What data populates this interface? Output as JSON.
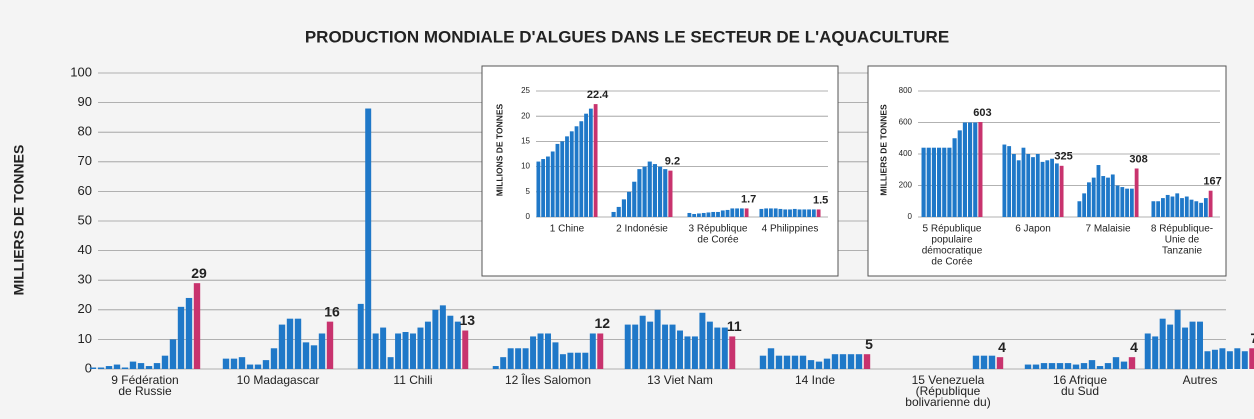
{
  "chart_data": [
    {
      "type": "grouped_bar",
      "title": "PRODUCTION MONDIALE D'ALGUES DANS LE SECTEUR DE L'AQUACULTURE",
      "y_label": "MILLIERS DE TONNES",
      "ylim": [
        0,
        100
      ],
      "yticks": [
        0,
        10,
        20,
        30,
        40,
        50,
        60,
        70,
        80,
        90,
        100
      ],
      "grid": true,
      "color": "#1f78c8",
      "highlight_color": "#c8336e",
      "groups": [
        {
          "name": [
            "9 Fédération",
            "de Russie"
          ],
          "values": [
            0.5,
            0.5,
            1,
            1.5,
            0.5,
            2.5,
            2,
            1,
            2,
            4.5,
            10,
            21,
            24,
            29
          ]
        },
        {
          "name": [
            "10 Madagascar"
          ],
          "values": [
            3.5,
            3.5,
            4,
            1.5,
            1.5,
            3,
            7,
            15,
            17,
            17,
            9,
            8,
            12,
            16
          ]
        },
        {
          "name": [
            "11 Chili"
          ],
          "values": [
            22,
            88,
            12,
            14,
            4,
            12,
            12.5,
            12,
            14,
            16,
            20,
            21.5,
            18,
            16,
            13
          ]
        },
        {
          "name": [
            "12 Îles Salomon"
          ],
          "values": [
            1,
            4,
            7,
            7,
            7,
            11,
            12,
            12,
            9,
            5,
            5.5,
            5.5,
            5.5,
            12,
            12
          ]
        },
        {
          "name": [
            "13 Viet Nam"
          ],
          "values": [
            15,
            15,
            18,
            16,
            20,
            15,
            15,
            13,
            11,
            11,
            19,
            16,
            14,
            14,
            11
          ]
        },
        {
          "name": [
            "14 Inde"
          ],
          "values": [
            4.5,
            7,
            4.5,
            4.5,
            4.5,
            4.5,
            3,
            2.5,
            3.5,
            5,
            5,
            5,
            5,
            5
          ]
        },
        {
          "name": [
            "15 Venezuela",
            "(République",
            "bolivarienne du)"
          ],
          "values": [
            0,
            0,
            0,
            0,
            0,
            0,
            0,
            0,
            0,
            0,
            4.5,
            4.5,
            4.5,
            4
          ]
        },
        {
          "name": [
            "16 Afrique",
            "du Sud"
          ],
          "values": [
            1.5,
            1.5,
            2,
            2,
            2,
            2,
            1.5,
            2,
            3,
            1,
            2,
            4,
            2.5,
            4
          ]
        },
        {
          "name": [
            "Autres"
          ],
          "values": [
            12,
            11,
            17,
            15,
            20,
            14,
            16,
            16,
            6,
            6.5,
            7,
            6,
            7,
            6,
            7
          ]
        }
      ]
    },
    {
      "type": "grouped_bar",
      "y_label": "MILLIONS DE TONNES",
      "ylim": [
        0,
        25
      ],
      "yticks": [
        0,
        5,
        10,
        15,
        20,
        25
      ],
      "grid": true,
      "color": "#1f78c8",
      "highlight_color": "#c8336e",
      "groups": [
        {
          "name": [
            "1 Chine"
          ],
          "values": [
            11,
            11.5,
            12,
            13,
            14.5,
            15,
            16,
            17,
            18,
            19,
            20.5,
            21.5,
            22.4
          ]
        },
        {
          "name": [
            "2 Indonésie"
          ],
          "values": [
            1,
            2,
            3.5,
            5,
            7,
            9.5,
            10,
            11,
            10.5,
            10,
            9.5,
            9.2
          ]
        },
        {
          "name": [
            "3 République",
            "de Corée"
          ],
          "values": [
            0.8,
            0.6,
            0.7,
            0.8,
            0.9,
            1,
            1,
            1.3,
            1.4,
            1.7,
            1.7,
            1.7,
            1.7
          ]
        },
        {
          "name": [
            "4 Philippines"
          ],
          "values": [
            1.6,
            1.7,
            1.7,
            1.7,
            1.6,
            1.5,
            1.5,
            1.6,
            1.5,
            1.5,
            1.5,
            1.5,
            1.5
          ]
        }
      ]
    },
    {
      "type": "grouped_bar",
      "y_label": "MILLIERS DE TONNES",
      "ylim": [
        0,
        800
      ],
      "yticks": [
        0,
        200,
        400,
        600,
        800
      ],
      "grid": true,
      "color": "#1f78c8",
      "highlight_color": "#c8336e",
      "groups": [
        {
          "name": [
            "5 République",
            "populaire",
            "démocratique",
            "de Corée"
          ],
          "values": [
            440,
            440,
            440,
            440,
            440,
            440,
            500,
            550,
            600,
            600,
            600,
            603
          ]
        },
        {
          "name": [
            "6 Japon"
          ],
          "values": [
            460,
            450,
            400,
            360,
            440,
            400,
            380,
            400,
            350,
            360,
            370,
            340,
            325
          ]
        },
        {
          "name": [
            "7 Malaisie"
          ],
          "values": [
            100,
            150,
            220,
            250,
            330,
            260,
            250,
            270,
            200,
            190,
            180,
            180,
            308
          ]
        },
        {
          "name": [
            "8 République-",
            "Unie de",
            "Tanzanie"
          ],
          "values": [
            100,
            100,
            120,
            140,
            130,
            150,
            120,
            130,
            110,
            100,
            90,
            120,
            167
          ]
        }
      ]
    }
  ]
}
